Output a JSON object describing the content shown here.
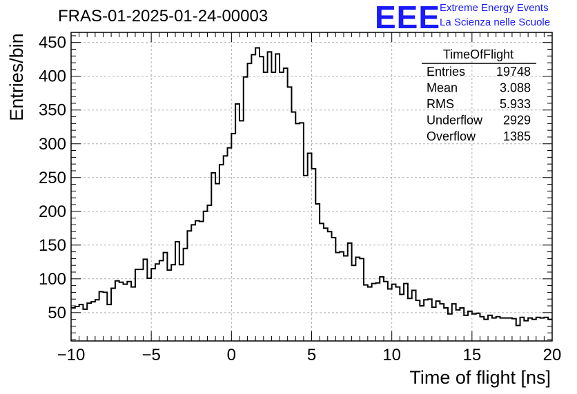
{
  "header": {
    "title": "FRAS-01-2025-01-24-00003",
    "logo_text": "EEE",
    "logo_line1": "Extreme Energy Events",
    "logo_line2": "La Scienza nelle Scuole",
    "logo_color": "#1a1aff"
  },
  "stats_box": {
    "name": "TimeOfFlight",
    "rows": [
      {
        "label": "Entries",
        "value": "19748"
      },
      {
        "label": "Mean",
        "value": "3.088"
      },
      {
        "label": "RMS",
        "value": "5.933"
      },
      {
        "label": "Underflow",
        "value": "2929"
      },
      {
        "label": "Overflow",
        "value": "1385"
      }
    ]
  },
  "chart_data": {
    "type": "bar",
    "histogram": "step",
    "xlabel": "Time of flight [ns]",
    "ylabel": "Entries/bin",
    "xlim": [
      -10,
      20
    ],
    "ylim": [
      8,
      465
    ],
    "bin_width": 0.25,
    "x_ticks": [
      -10,
      -5,
      0,
      5,
      10,
      15,
      20
    ],
    "x_tick_labels": [
      "−10",
      "−5",
      "0",
      "5",
      "10",
      "15",
      "20"
    ],
    "y_ticks": [
      50,
      100,
      150,
      200,
      250,
      300,
      350,
      400,
      450
    ],
    "y_tick_labels": [
      "50",
      "100",
      "150",
      "200",
      "250",
      "300",
      "350",
      "400",
      "450"
    ],
    "grid": true,
    "values": [
      57,
      59,
      62,
      55,
      64,
      66,
      69,
      81,
      80,
      62,
      86,
      97,
      95,
      92,
      96,
      88,
      114,
      114,
      129,
      101,
      115,
      122,
      127,
      139,
      113,
      121,
      155,
      121,
      145,
      171,
      180,
      186,
      185,
      200,
      209,
      257,
      241,
      269,
      282,
      294,
      315,
      359,
      334,
      399,
      419,
      432,
      442,
      429,
      406,
      436,
      406,
      433,
      406,
      412,
      384,
      347,
      330,
      331,
      253,
      286,
      263,
      211,
      182,
      175,
      170,
      161,
      139,
      140,
      134,
      153,
      120,
      132,
      130,
      91,
      88,
      93,
      94,
      103,
      96,
      85,
      92,
      88,
      77,
      93,
      71,
      83,
      68,
      60,
      69,
      70,
      58,
      67,
      63,
      57,
      48,
      63,
      54,
      57,
      46,
      52,
      48,
      49,
      44,
      40,
      46,
      42,
      44,
      42,
      42,
      42,
      41,
      31,
      43,
      38,
      42,
      40,
      43,
      42,
      43,
      40
    ]
  }
}
